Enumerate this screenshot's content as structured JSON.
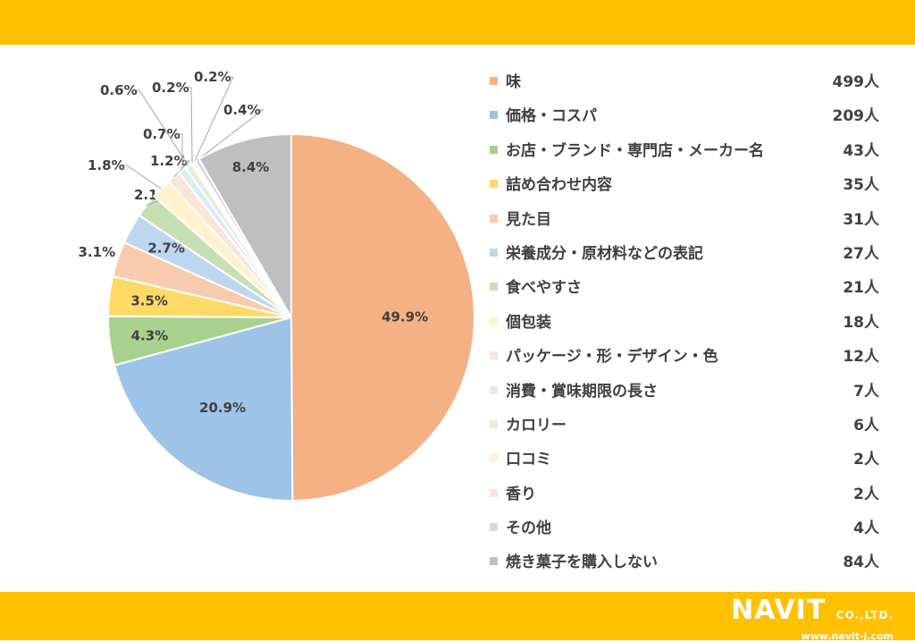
{
  "chart_data": {
    "type": "pie",
    "slices": [
      {
        "label": "味",
        "count": "499人",
        "percent": 49.9,
        "pct_label": "49.9%",
        "color": "#F4B183"
      },
      {
        "label": "価格・コスパ",
        "count": "209人",
        "percent": 20.9,
        "pct_label": "20.9%",
        "color": "#9DC3E6"
      },
      {
        "label": "お店・ブランド・専門店・メーカー名",
        "count": "43人",
        "percent": 4.3,
        "pct_label": "4.3%",
        "color": "#A9D18E"
      },
      {
        "label": "詰め合わせ内容",
        "count": "35人",
        "percent": 3.5,
        "pct_label": "3.5%",
        "color": "#FFD966"
      },
      {
        "label": "見た目",
        "count": "31人",
        "percent": 3.1,
        "pct_label": "3.1%",
        "color": "#F8CBAD"
      },
      {
        "label": "栄養成分・原材料などの表記",
        "count": "27人",
        "percent": 2.7,
        "pct_label": "2.7%",
        "color": "#BDD7EE"
      },
      {
        "label": "食べやすさ",
        "count": "21人",
        "percent": 2.1,
        "pct_label": "2.1%",
        "color": "#C5E0B4"
      },
      {
        "label": "個包装",
        "count": "18人",
        "percent": 1.8,
        "pct_label": "1.8%",
        "color": "#FFF2CC"
      },
      {
        "label": "パッケージ・形・デザイン・色",
        "count": "12人",
        "percent": 1.2,
        "pct_label": "1.2%",
        "color": "#FBE5D6"
      },
      {
        "label": "消費・賞味期限の長さ",
        "count": "7人",
        "percent": 0.7,
        "pct_label": "0.7%",
        "color": "#DEEBF7"
      },
      {
        "label": "カロリー",
        "count": "6人",
        "percent": 0.6,
        "pct_label": "0.6%",
        "color": "#E2F0D9"
      },
      {
        "label": "口コミ",
        "count": "2人",
        "percent": 0.2,
        "pct_label": "0.2%",
        "color": "#FFF2CC"
      },
      {
        "label": "香り",
        "count": "2人",
        "percent": 0.2,
        "pct_label": "0.2%",
        "color": "#FBE5D6"
      },
      {
        "label": "その他",
        "count": "4人",
        "percent": 0.4,
        "pct_label": "0.4%",
        "color": "#D9D9D9"
      },
      {
        "label": "焼き菓子を購入しない",
        "count": "84人",
        "percent": 8.4,
        "pct_label": "8.4%",
        "color": "#BFBFBF"
      }
    ],
    "start_angle": "12 o'clock",
    "direction": "clockwise",
    "legend_position": "right"
  },
  "logo": {
    "name": "NAVIT",
    "suffix": "CO.,LTD.",
    "url": "www.navit-j.com"
  }
}
